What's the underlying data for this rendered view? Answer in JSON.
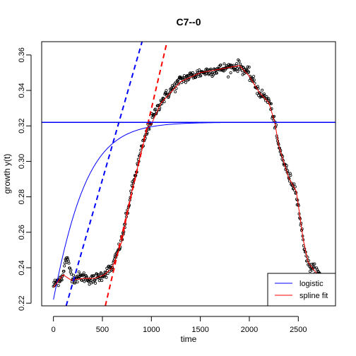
{
  "chart_data": {
    "type": "scatter",
    "title": "C7--0",
    "xlabel": "time",
    "ylabel": "growth y(t)",
    "xlim": [
      -120,
      2880
    ],
    "ylim": [
      0.2185,
      0.3675
    ],
    "x_ticks": [
      0,
      500,
      1000,
      1500,
      2000,
      2500
    ],
    "y_ticks": [
      0.22,
      0.24,
      0.26,
      0.28,
      0.3,
      0.32,
      0.34,
      0.36
    ],
    "observations": {
      "name": "data",
      "marker": "open-circle",
      "color": "#000000",
      "shape_points": [
        {
          "x": 0,
          "y": 0.23
        },
        {
          "x": 100,
          "y": 0.236
        },
        {
          "x": 130,
          "y": 0.246
        },
        {
          "x": 200,
          "y": 0.234
        },
        {
          "x": 300,
          "y": 0.235
        },
        {
          "x": 400,
          "y": 0.233
        },
        {
          "x": 500,
          "y": 0.236
        },
        {
          "x": 600,
          "y": 0.24
        },
        {
          "x": 700,
          "y": 0.256
        },
        {
          "x": 800,
          "y": 0.284
        },
        {
          "x": 900,
          "y": 0.307
        },
        {
          "x": 980,
          "y": 0.321
        },
        {
          "x": 1100,
          "y": 0.334
        },
        {
          "x": 1300,
          "y": 0.346
        },
        {
          "x": 1500,
          "y": 0.35
        },
        {
          "x": 1700,
          "y": 0.352
        },
        {
          "x": 1900,
          "y": 0.354
        },
        {
          "x": 2000,
          "y": 0.349
        },
        {
          "x": 2100,
          "y": 0.339
        },
        {
          "x": 2200,
          "y": 0.334
        },
        {
          "x": 2250,
          "y": 0.324
        },
        {
          "x": 2300,
          "y": 0.308
        },
        {
          "x": 2400,
          "y": 0.292
        },
        {
          "x": 2480,
          "y": 0.283
        },
        {
          "x": 2550,
          "y": 0.255
        },
        {
          "x": 2600,
          "y": 0.242
        },
        {
          "x": 2700,
          "y": 0.237
        },
        {
          "x": 2850,
          "y": 0.227
        }
      ],
      "noise_sd": 0.0015,
      "sample_count": 560
    },
    "series": [
      {
        "name": "logistic",
        "kind": "logistic",
        "color": "#0000ff",
        "style": "solid",
        "K": 0.322,
        "y0": 0.222,
        "mu": 0.00407,
        "x_start": 0,
        "x_end": 2880
      },
      {
        "name": "spline fit",
        "kind": "spline",
        "color": "#ff0000",
        "style": "solid",
        "points": [
          {
            "x": 0,
            "y": 0.229
          },
          {
            "x": 100,
            "y": 0.236
          },
          {
            "x": 180,
            "y": 0.233
          },
          {
            "x": 300,
            "y": 0.234
          },
          {
            "x": 420,
            "y": 0.234
          },
          {
            "x": 520,
            "y": 0.236
          },
          {
            "x": 600,
            "y": 0.24
          },
          {
            "x": 700,
            "y": 0.255
          },
          {
            "x": 800,
            "y": 0.283
          },
          {
            "x": 900,
            "y": 0.306
          },
          {
            "x": 960,
            "y": 0.319
          },
          {
            "x": 1000,
            "y": 0.321
          },
          {
            "x": 1100,
            "y": 0.333
          },
          {
            "x": 1300,
            "y": 0.345
          },
          {
            "x": 1500,
            "y": 0.35
          },
          {
            "x": 1700,
            "y": 0.352
          },
          {
            "x": 1900,
            "y": 0.354
          },
          {
            "x": 2000,
            "y": 0.348
          },
          {
            "x": 2100,
            "y": 0.339
          },
          {
            "x": 2200,
            "y": 0.333
          },
          {
            "x": 2260,
            "y": 0.322
          },
          {
            "x": 2300,
            "y": 0.309
          },
          {
            "x": 2400,
            "y": 0.291
          },
          {
            "x": 2480,
            "y": 0.283
          },
          {
            "x": 2550,
            "y": 0.256
          },
          {
            "x": 2600,
            "y": 0.243
          },
          {
            "x": 2700,
            "y": 0.236
          },
          {
            "x": 2880,
            "y": 0.226
          }
        ]
      },
      {
        "name": "logistic max slope",
        "kind": "line",
        "color": "#0000ff",
        "style": "dashed",
        "from": {
          "x": 130,
          "y": 0.2185
        },
        "to": {
          "x": 905,
          "y": 0.3675
        }
      },
      {
        "name": "spline max slope",
        "kind": "line",
        "color": "#ff0000",
        "style": "dashed",
        "from": {
          "x": 530,
          "y": 0.2185
        },
        "to": {
          "x": 1160,
          "y": 0.3675
        }
      },
      {
        "name": "logistic asymptote",
        "kind": "hline",
        "color": "#0000ff",
        "style": "solid",
        "y": 0.322
      }
    ],
    "legend": {
      "position": "bottom-right",
      "entries": [
        {
          "label": "logistic",
          "color": "#0000ff"
        },
        {
          "label": "spline fit",
          "color": "#ff0000"
        }
      ]
    }
  }
}
